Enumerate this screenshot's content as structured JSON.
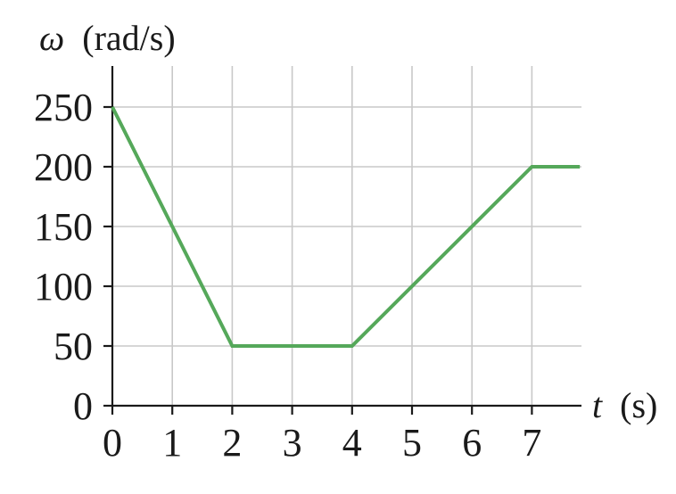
{
  "chart_data": {
    "type": "line",
    "ylabel_symbol": "ω",
    "ylabel_unit": "(rad/s)",
    "xlabel_symbol": "t",
    "xlabel_unit": "(s)",
    "xlim": [
      0,
      7.8
    ],
    "ylim": [
      0,
      250
    ],
    "x_ticks": [
      0,
      1,
      2,
      3,
      4,
      5,
      6,
      7
    ],
    "y_ticks": [
      0,
      50,
      100,
      150,
      200,
      250
    ],
    "x_tick_labels": [
      "0",
      "1",
      "2",
      "3",
      "4",
      "5",
      "6",
      "7"
    ],
    "y_tick_labels": [
      "0",
      "50",
      "100",
      "150",
      "200",
      "250"
    ],
    "grid": true,
    "series": [
      {
        "color": "#55a85a",
        "x": [
          0,
          2,
          4,
          7,
          7.8
        ],
        "y": [
          250,
          50,
          50,
          200,
          200
        ]
      }
    ]
  }
}
